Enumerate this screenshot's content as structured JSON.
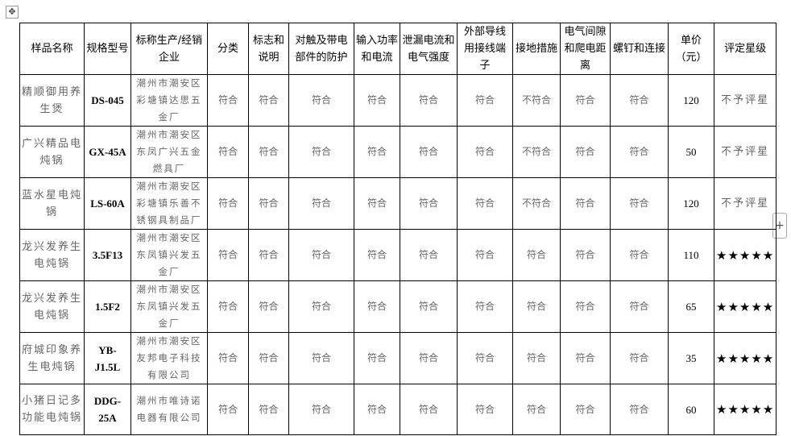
{
  "headers": [
    "样品名称",
    "规格型号",
    "标称生产/经销企业",
    "分类",
    "标志和说明",
    "对触及带电部件的防护",
    "输入功率和电流",
    "泄漏电流和电气强度",
    "外部导线用接线端子",
    "接地措施",
    "电气间隙和爬电距离",
    "螺钉和连接",
    "单价（元）",
    "评定星级"
  ],
  "rows": [
    {
      "name": "精顺御用养生煲",
      "model": "DS-045",
      "company": "潮州市潮安区彩塘镇达思五金厂",
      "results": [
        "符合",
        "符合",
        "符合",
        "符合",
        "符合",
        "符合",
        "不符合",
        "符合",
        "符合"
      ],
      "price": "120",
      "rating": "不予评星"
    },
    {
      "name": "广兴精品电炖锅",
      "model": "GX-45A",
      "company": "潮州市潮安区东凤广兴五金燃具厂",
      "results": [
        "符合",
        "符合",
        "符合",
        "符合",
        "符合",
        "符合",
        "不符合",
        "符合",
        "符合"
      ],
      "price": "50",
      "rating": "不予评星"
    },
    {
      "name": "蓝水星电炖锅",
      "model": "LS-60A",
      "company": "潮州市潮安区彩塘镇乐善不锈钢具制品厂",
      "results": [
        "符合",
        "符合",
        "符合",
        "符合",
        "符合",
        "符合",
        "不符合",
        "符合",
        "符合"
      ],
      "price": "120",
      "rating": "不予评星"
    },
    {
      "name": "龙兴发养生电炖锅",
      "model": "3.5F13",
      "company": "潮州市潮安区东凤镇兴发五金厂",
      "results": [
        "符合",
        "符合",
        "符合",
        "符合",
        "符合",
        "符合",
        "符合",
        "符合",
        "符合"
      ],
      "price": "110",
      "rating": "★★★★★"
    },
    {
      "name": "龙兴发养生电炖锅",
      "model": "1.5F2",
      "company": "潮州市潮安区东凤镇兴发五金厂",
      "results": [
        "符合",
        "符合",
        "符合",
        "符合",
        "符合",
        "符合",
        "符合",
        "符合",
        "符合"
      ],
      "price": "65",
      "rating": "★★★★★"
    },
    {
      "name": "府城印象养生电炖锅",
      "model": "YB-J1.5L",
      "company": "潮州市潮安区友邦电子科技有限公司",
      "results": [
        "符合",
        "符合",
        "符合",
        "符合",
        "符合",
        "符合",
        "符合",
        "符合",
        "符合"
      ],
      "price": "35",
      "rating": "★★★★★"
    },
    {
      "name": "小猪日记多功能电炖锅",
      "model": "DDG-25A",
      "company": "潮州市唯诗诺电器有限公司",
      "results": [
        "符合",
        "符合",
        "符合",
        "符合",
        "符合",
        "符合",
        "符合",
        "符合",
        "符合"
      ],
      "price": "60",
      "rating": "★★★★★"
    }
  ]
}
